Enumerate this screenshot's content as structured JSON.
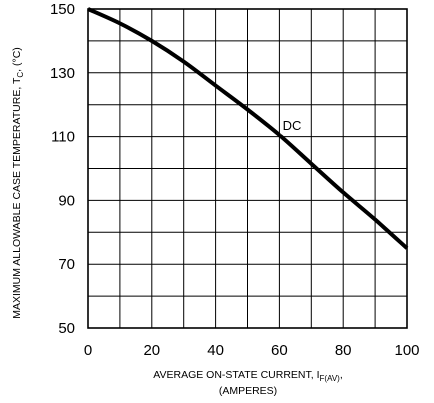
{
  "chart_data": {
    "type": "line",
    "xlabel_main": "AVERAGE ON-STATE  CURRENT, I",
    "xlabel_sub": "F(AV)",
    "xlabel_tail": ",",
    "xlabel_line2": "(AMPERES)",
    "ylabel_main": "MAXIMUM ALLOWABLE CASE TEMPERATURE, T",
    "ylabel_sub": "C",
    "ylabel_tail": ", (°C)",
    "xlim": [
      0,
      100
    ],
    "ylim": [
      50,
      150
    ],
    "x_ticks": [
      "0",
      "20",
      "40",
      "60",
      "80",
      "100"
    ],
    "y_ticks": [
      "50",
      "70",
      "90",
      "110",
      "130",
      "150"
    ],
    "grid": true,
    "series": [
      {
        "name": "DC",
        "x": [
          0,
          10,
          20,
          30,
          40,
          50,
          60,
          70,
          80,
          90,
          100
        ],
        "y": [
          150,
          145.5,
          140,
          133.5,
          126,
          118.5,
          110.5,
          101.5,
          92.5,
          84,
          75
        ]
      }
    ],
    "annotations": [
      {
        "text": "DC",
        "x": 61,
        "y": 112
      }
    ]
  }
}
